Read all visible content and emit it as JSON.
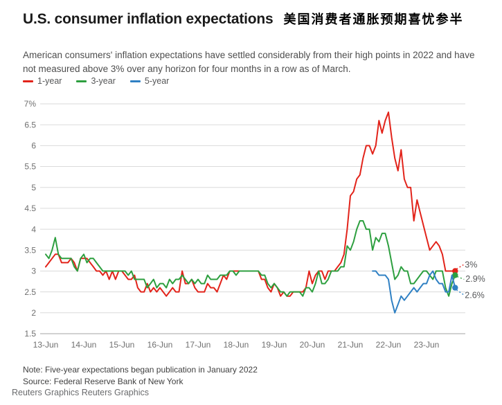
{
  "header": {
    "title": "U.S. consumer inflation expectations",
    "title_zh": "美国消费者通胀预期喜忧参半",
    "subtitle": "American consumers' inflation expectations have settled considerably from their high points in 2022 and have not measured above 3% over any horizon for four months in a row as of March."
  },
  "legend": [
    {
      "label": "1-year",
      "color": "#e2231a"
    },
    {
      "label": "3-year",
      "color": "#2d9f3f"
    },
    {
      "label": "5-year",
      "color": "#2f80c3"
    }
  ],
  "chart_data": {
    "type": "line",
    "title": "U.S. consumer inflation expectations",
    "x_axis": {
      "start": "2013-06",
      "end": "2024-03",
      "frequency": "monthly",
      "points": 130
    },
    "x_tick_labels": [
      "13-Jun",
      "14-Jun",
      "15-Jun",
      "16-Jun",
      "17-Jun",
      "18-Jun",
      "19-Jun",
      "20-Jun",
      "21-Jun",
      "22-Jun",
      "23-Jun"
    ],
    "y_ticks": [
      7,
      6.5,
      6,
      5.5,
      5,
      4.5,
      4,
      3.5,
      3,
      2.5,
      2,
      1.5
    ],
    "y_tick_labels": [
      "7%",
      "6.5",
      "6",
      "5.5",
      "5",
      "4.5",
      "4",
      "3.5",
      "3",
      "2.5",
      "2",
      "1.5"
    ],
    "ylim": [
      1.5,
      7
    ],
    "unit": "percent",
    "grid": "horizontal",
    "legend_position": "top-left",
    "series": [
      {
        "name": "1-year",
        "color": "#e2231a",
        "start_index": 0,
        "end_label": "3%",
        "values": [
          3.1,
          3.2,
          3.3,
          3.4,
          3.4,
          3.2,
          3.2,
          3.2,
          3.3,
          3.2,
          3.0,
          3.3,
          3.3,
          3.3,
          3.2,
          3.1,
          3.0,
          3.0,
          2.9,
          3.0,
          2.8,
          3.0,
          2.8,
          3.0,
          3.0,
          2.9,
          2.8,
          2.8,
          2.9,
          2.6,
          2.5,
          2.5,
          2.7,
          2.5,
          2.6,
          2.5,
          2.6,
          2.5,
          2.4,
          2.5,
          2.6,
          2.5,
          2.5,
          3.0,
          2.7,
          2.7,
          2.8,
          2.6,
          2.5,
          2.5,
          2.5,
          2.7,
          2.6,
          2.6,
          2.5,
          2.7,
          2.9,
          2.8,
          3.0,
          3.0,
          3.0,
          3.0,
          3.0,
          3.0,
          3.0,
          3.0,
          3.0,
          3.0,
          2.8,
          2.8,
          2.6,
          2.5,
          2.7,
          2.6,
          2.4,
          2.5,
          2.4,
          2.4,
          2.5,
          2.5,
          2.5,
          2.5,
          2.6,
          3.0,
          2.7,
          2.9,
          3.0,
          3.0,
          2.8,
          3.0,
          3.0,
          3.0,
          3.1,
          3.2,
          3.4,
          4.0,
          4.8,
          4.9,
          5.2,
          5.3,
          5.7,
          6.0,
          6.0,
          5.8,
          6.0,
          6.6,
          6.3,
          6.6,
          6.8,
          6.2,
          5.7,
          5.4,
          5.9,
          5.2,
          5.0,
          5.0,
          4.2,
          4.7,
          4.4,
          4.1,
          3.8,
          3.5,
          3.6,
          3.7,
          3.6,
          3.4,
          3.0,
          3.0,
          3.0,
          3.0
        ]
      },
      {
        "name": "3-year",
        "color": "#2d9f3f",
        "start_index": 0,
        "end_label": "2.9%",
        "values": [
          3.4,
          3.3,
          3.5,
          3.8,
          3.4,
          3.3,
          3.3,
          3.3,
          3.3,
          3.1,
          3.0,
          3.3,
          3.4,
          3.2,
          3.3,
          3.3,
          3.2,
          3.1,
          3.0,
          3.0,
          3.0,
          3.0,
          3.0,
          3.0,
          3.0,
          3.0,
          2.9,
          3.0,
          2.8,
          2.8,
          2.8,
          2.8,
          2.6,
          2.7,
          2.8,
          2.6,
          2.7,
          2.7,
          2.6,
          2.8,
          2.7,
          2.8,
          2.8,
          2.9,
          2.8,
          2.7,
          2.8,
          2.7,
          2.8,
          2.7,
          2.7,
          2.9,
          2.8,
          2.8,
          2.8,
          2.9,
          2.9,
          2.9,
          3.0,
          3.0,
          2.9,
          3.0,
          3.0,
          3.0,
          3.0,
          3.0,
          3.0,
          3.0,
          2.9,
          2.9,
          2.7,
          2.6,
          2.7,
          2.6,
          2.5,
          2.5,
          2.4,
          2.5,
          2.5,
          2.5,
          2.5,
          2.4,
          2.6,
          2.6,
          2.5,
          2.7,
          3.0,
          2.7,
          2.7,
          2.8,
          3.0,
          3.0,
          3.0,
          3.1,
          3.1,
          3.6,
          3.5,
          3.7,
          4.0,
          4.2,
          4.2,
          4.0,
          4.0,
          3.5,
          3.8,
          3.7,
          3.9,
          3.9,
          3.6,
          3.2,
          2.8,
          2.9,
          3.1,
          3.0,
          3.0,
          2.7,
          2.7,
          2.8,
          2.9,
          3.0,
          3.0,
          2.9,
          2.8,
          3.0,
          3.0,
          3.0,
          2.6,
          2.4,
          2.7,
          2.9
        ]
      },
      {
        "name": "5-year",
        "color": "#2f80c3",
        "start_index": 103,
        "end_label": "2.6%",
        "values": [
          3.0,
          3.0,
          2.9,
          2.9,
          2.9,
          2.8,
          2.3,
          2.0,
          2.2,
          2.4,
          2.3,
          2.4,
          2.5,
          2.6,
          2.5,
          2.6,
          2.7,
          2.7,
          2.9,
          3.0,
          2.8,
          2.7,
          2.7,
          2.5,
          2.5,
          2.9,
          2.6
        ]
      }
    ]
  },
  "footnotes": {
    "note": "Note: Five-year expectations began publication in January 2022",
    "source": "Source: Federal Reserve Bank of New York"
  },
  "footer": {
    "credit": "Reuters Graphics Reuters Graphics"
  }
}
